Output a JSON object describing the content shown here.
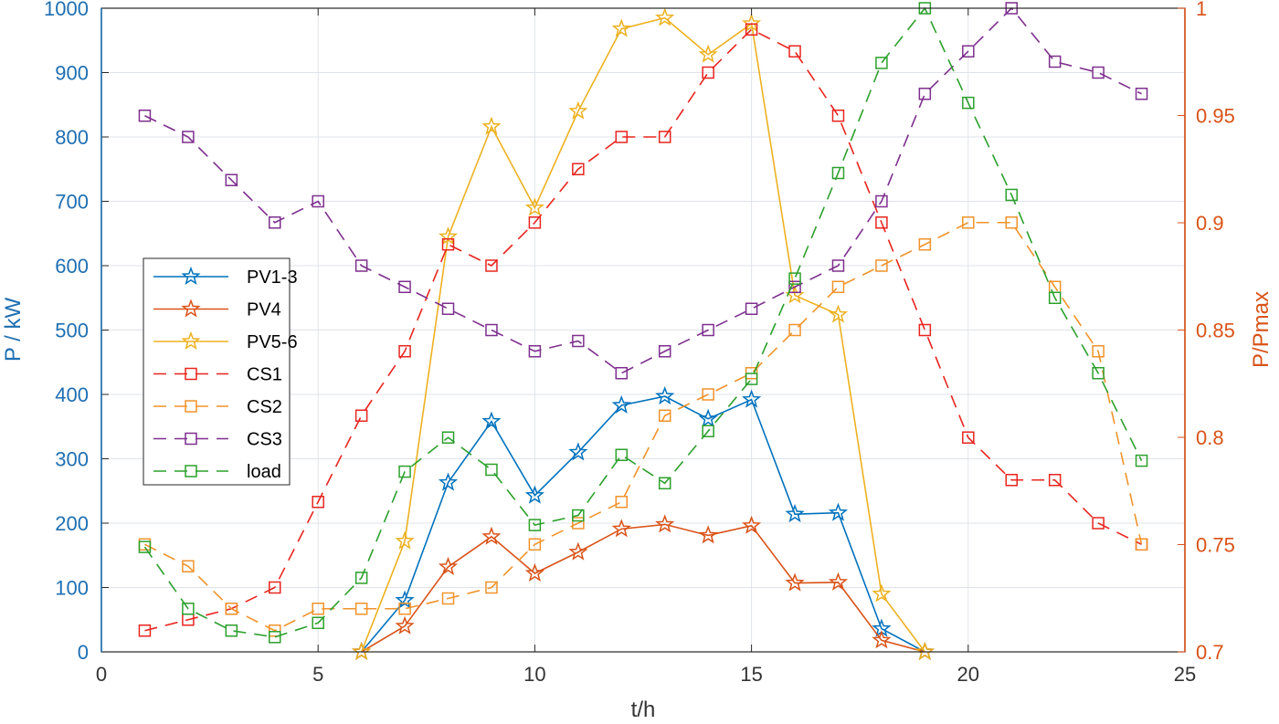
{
  "chart_data": {
    "type": "line",
    "title": "",
    "xlabel": "t/h",
    "ylabel_left": "P / kW",
    "ylabel_right": "P/Pmax",
    "xlim": [
      0,
      25
    ],
    "ylim_left": [
      0,
      1000
    ],
    "ylim_right": [
      0.7,
      1.0
    ],
    "x_ticks": [
      "0",
      "5",
      "10",
      "15",
      "20",
      "25"
    ],
    "y_ticks_left": [
      "0",
      "100",
      "200",
      "300",
      "400",
      "500",
      "600",
      "700",
      "800",
      "900",
      "1000"
    ],
    "y_ticks_right": [
      "0.7",
      "0.75",
      "0.8",
      "0.85",
      "0.9",
      "0.95",
      "1"
    ],
    "grid": true,
    "legend_position": "left",
    "colors": {
      "left_axis": "#1f6fb2",
      "right_axis": "#d95319",
      "grid": "#dfe3ea"
    },
    "series": [
      {
        "name": "PV1-3",
        "axis": "left",
        "color": "#0072bd",
        "marker": "star",
        "dash": "solid",
        "x": [
          6,
          7,
          8,
          9,
          10,
          11,
          12,
          13,
          14,
          15,
          16,
          17,
          18,
          19
        ],
        "y": [
          0,
          80,
          263,
          358,
          243,
          310,
          383,
          397,
          362,
          392,
          214,
          216,
          36,
          0
        ]
      },
      {
        "name": "PV4",
        "axis": "left",
        "color": "#d95319",
        "marker": "star",
        "dash": "solid",
        "x": [
          6,
          7,
          8,
          9,
          10,
          11,
          12,
          13,
          14,
          15,
          16,
          17,
          18,
          19
        ],
        "y": [
          0,
          40,
          132,
          179,
          122,
          155,
          191,
          198,
          181,
          196,
          107,
          108,
          18,
          0
        ]
      },
      {
        "name": "PV5-6",
        "axis": "left",
        "color": "#edb120",
        "marker": "star",
        "dash": "solid",
        "x": [
          6,
          7,
          8,
          9,
          10,
          11,
          12,
          13,
          14,
          15,
          16,
          17,
          18,
          19
        ],
        "y": [
          0,
          172,
          645,
          816,
          690,
          840,
          968,
          985,
          928,
          976,
          554,
          524,
          90,
          0
        ]
      },
      {
        "name": "CS1",
        "axis": "left",
        "color": "#e8251f",
        "marker": "square",
        "dash": "dashed",
        "x": [
          1,
          2,
          3,
          4,
          5,
          6,
          7,
          8,
          9,
          10,
          11,
          12,
          13,
          14,
          15,
          16,
          17,
          18,
          19,
          20,
          21,
          22,
          23,
          24
        ],
        "y": [
          33,
          50,
          67,
          100,
          233,
          367,
          467,
          633,
          600,
          667,
          750,
          800,
          800,
          900,
          967,
          933,
          833,
          667,
          500,
          333,
          267,
          267,
          200,
          167
        ]
      },
      {
        "name": "CS2",
        "axis": "left",
        "color": "#f0932b",
        "marker": "square",
        "dash": "dashed",
        "x": [
          1,
          2,
          3,
          4,
          5,
          6,
          7,
          8,
          9,
          10,
          11,
          12,
          13,
          14,
          15,
          16,
          17,
          18,
          19,
          20,
          21,
          22,
          23,
          24
        ],
        "y": [
          167,
          133,
          67,
          33,
          67,
          67,
          67,
          83,
          100,
          167,
          200,
          233,
          367,
          400,
          433,
          500,
          567,
          600,
          633,
          667,
          667,
          567,
          467,
          167
        ]
      },
      {
        "name": "CS3",
        "axis": "left",
        "color": "#7e2f8e",
        "marker": "square",
        "dash": "dashed",
        "x": [
          1,
          2,
          3,
          4,
          5,
          6,
          7,
          8,
          9,
          10,
          11,
          12,
          13,
          14,
          15,
          16,
          17,
          18,
          19,
          20,
          21,
          22,
          23,
          24
        ],
        "y": [
          833,
          800,
          733,
          667,
          700,
          600,
          567,
          533,
          500,
          467,
          483,
          433,
          467,
          500,
          533,
          567,
          600,
          700,
          867,
          933,
          1000,
          917,
          900,
          867
        ]
      },
      {
        "name": "load",
        "axis": "left",
        "color": "#2ca02c",
        "marker": "square",
        "dash": "dashed",
        "x": [
          1,
          2,
          3,
          4,
          5,
          6,
          7,
          8,
          9,
          10,
          11,
          12,
          13,
          14,
          15,
          16,
          17,
          18,
          19,
          20,
          21,
          22,
          23,
          24
        ],
        "y": [
          163,
          67,
          33,
          23,
          45,
          115,
          280,
          333,
          283,
          197,
          212,
          306,
          262,
          343,
          424,
          580,
          744,
          915,
          1000,
          853,
          710,
          550,
          433,
          297
        ]
      }
    ]
  }
}
